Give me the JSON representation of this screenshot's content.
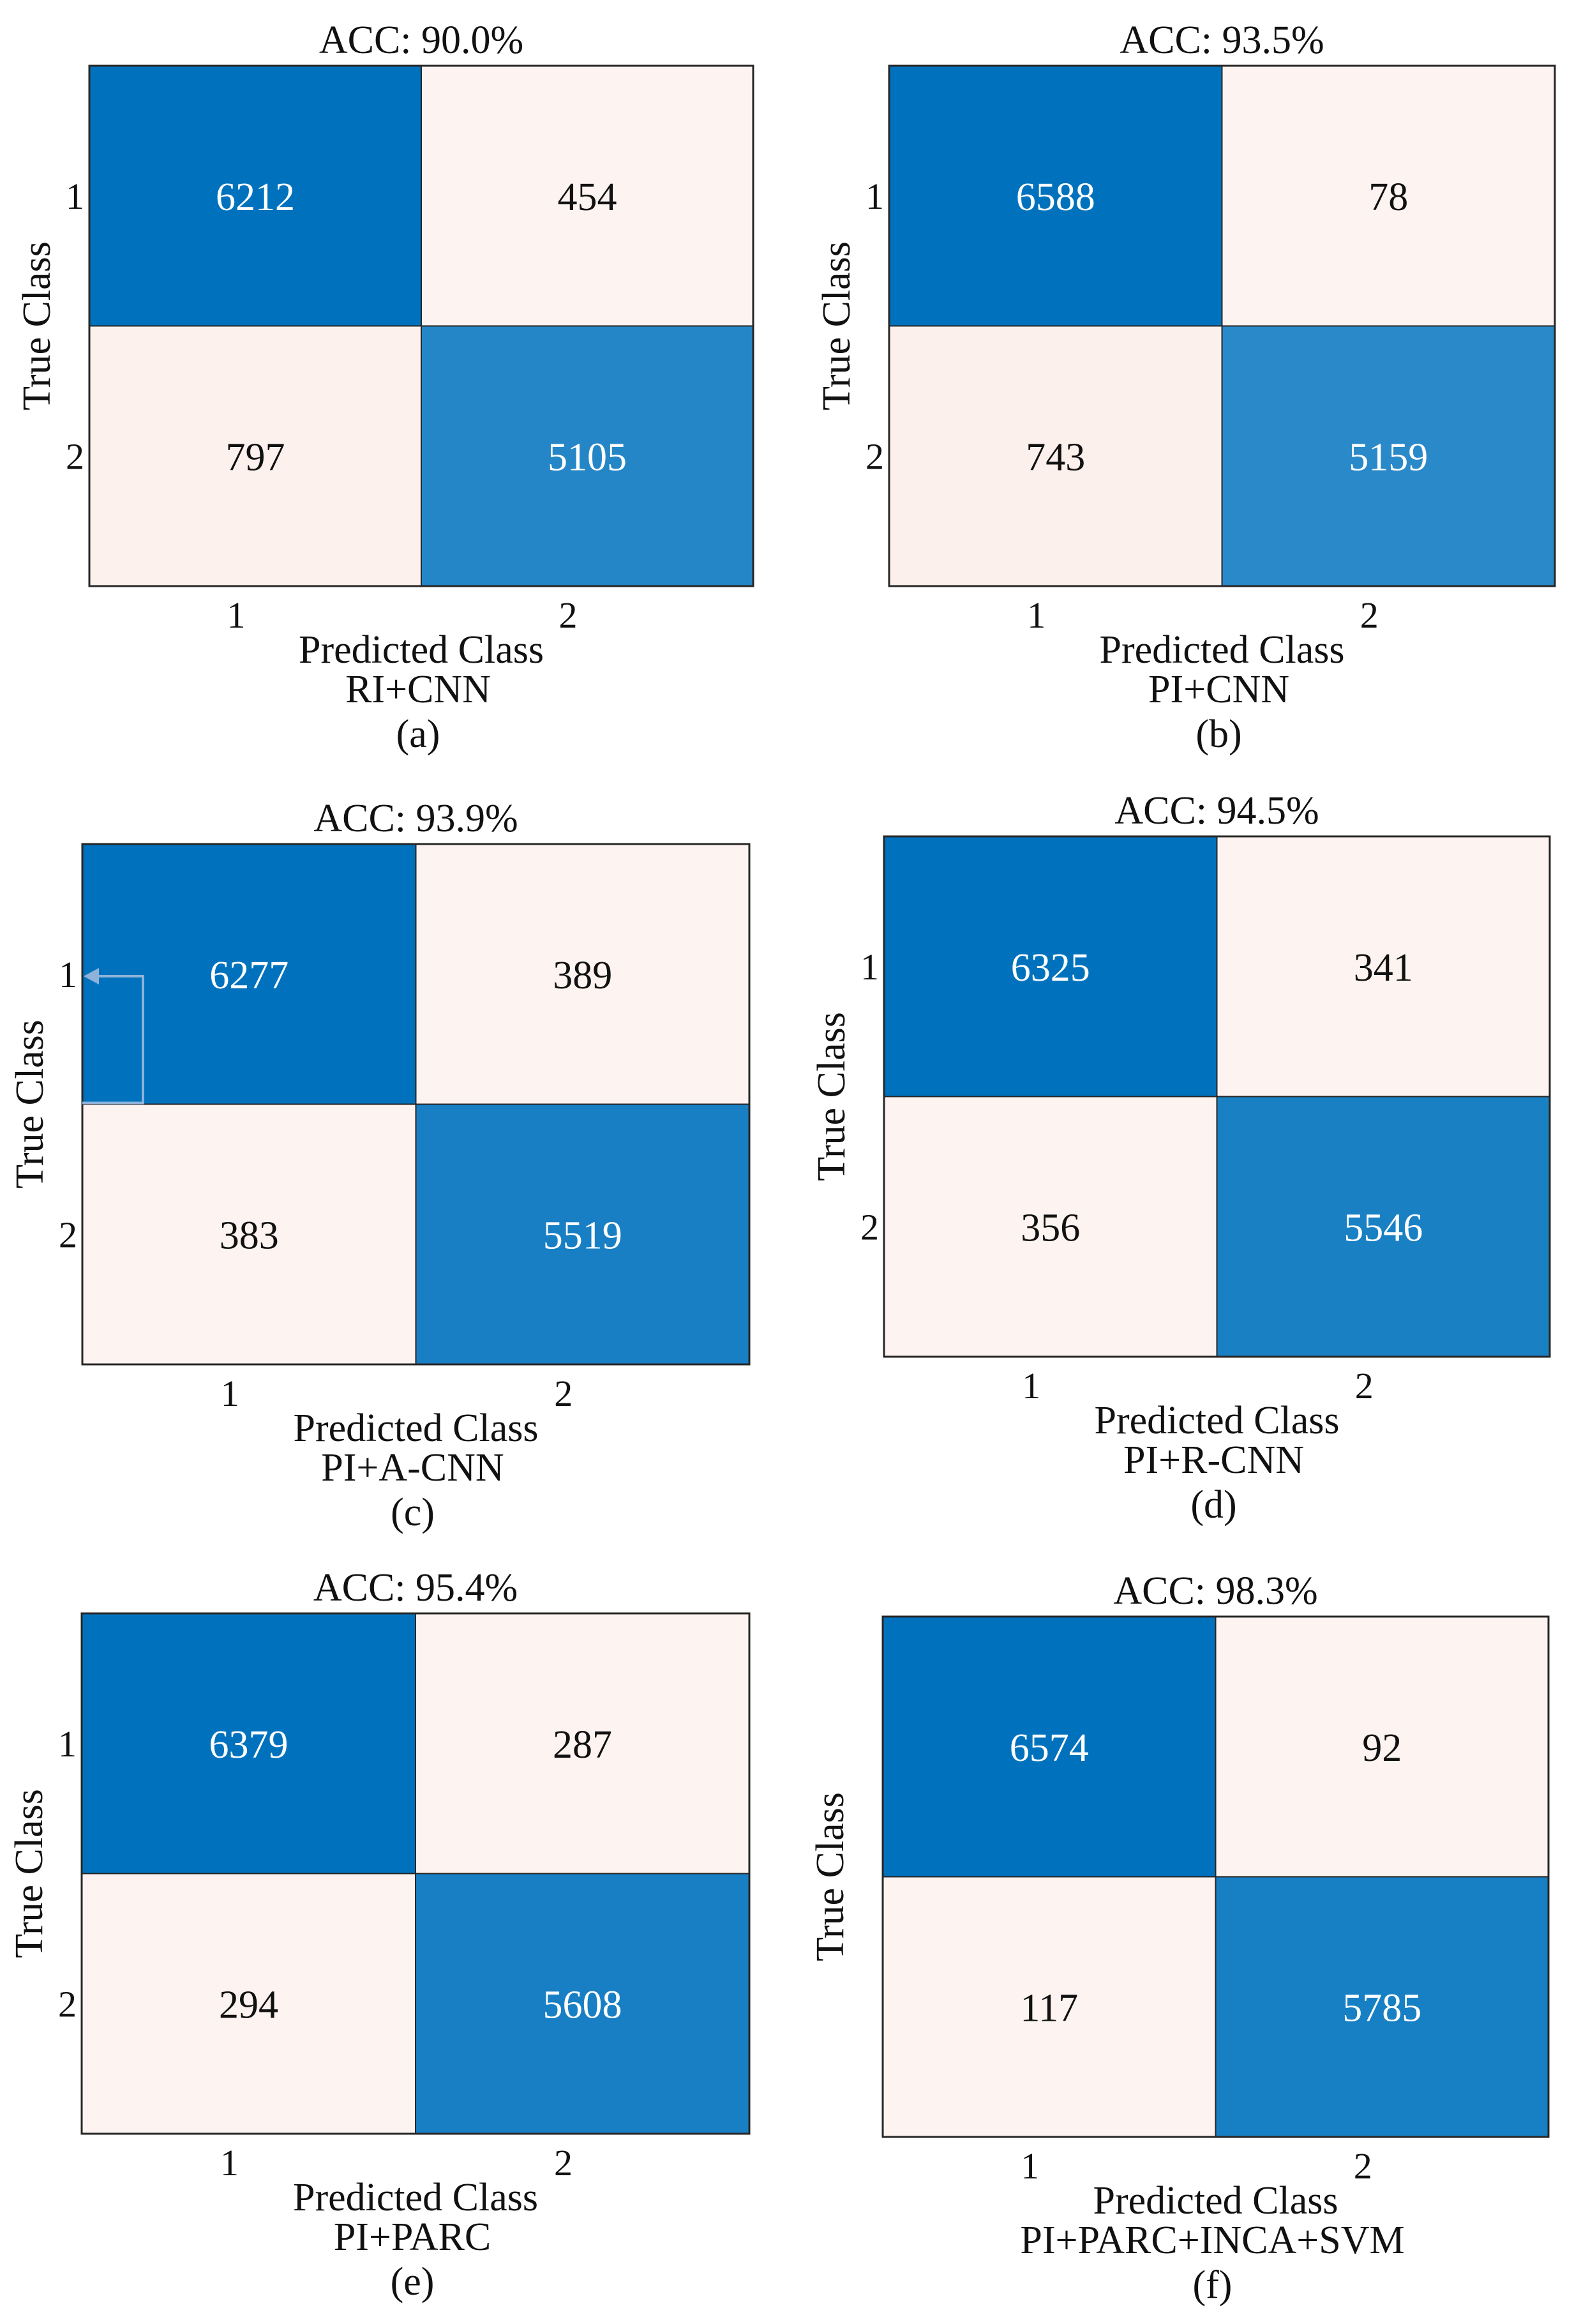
{
  "figure": {
    "colors": {
      "high": "#0072bd",
      "low": "#fdf3f0",
      "mid": "#f8e0d8",
      "border": "#262626",
      "text_dark": "#111111",
      "text_light": "#ffffff",
      "annotation": "#8fb2d9"
    }
  },
  "chart_data": [
    {
      "type": "heatmap",
      "title": "ACC: 90.0%",
      "xlabel": "Predicted Class",
      "ylabel": "True Class",
      "x_ticks": [
        "1",
        "2"
      ],
      "y_ticks": [
        "1",
        "2"
      ],
      "values": [
        [
          6212,
          454
        ],
        [
          797,
          5105
        ]
      ],
      "method": "RI+CNN",
      "panel_label": "(a)"
    },
    {
      "type": "heatmap",
      "title": "ACC: 93.5%",
      "xlabel": "Predicted Class",
      "ylabel": "True Class",
      "x_ticks": [
        "1",
        "2"
      ],
      "y_ticks": [
        "1",
        "2"
      ],
      "values": [
        [
          6588,
          78
        ],
        [
          743,
          5159
        ]
      ],
      "method": "PI+CNN",
      "panel_label": "(b)"
    },
    {
      "type": "heatmap",
      "title": "ACC: 93.9%",
      "xlabel": "Predicted Class",
      "ylabel": "True Class",
      "x_ticks": [
        "1",
        "2"
      ],
      "y_ticks": [
        "1",
        "2"
      ],
      "values": [
        [
          6277,
          389
        ],
        [
          383,
          5519
        ]
      ],
      "method": "PI+A-CNN",
      "panel_label": "(c)"
    },
    {
      "type": "heatmap",
      "title": "ACC: 94.5%",
      "xlabel": "Predicted Class",
      "ylabel": "True Class",
      "x_ticks": [
        "1",
        "2"
      ],
      "y_ticks": [
        "1",
        "2"
      ],
      "values": [
        [
          6325,
          341
        ],
        [
          356,
          5546
        ]
      ],
      "method": "PI+R-CNN",
      "panel_label": "(d)"
    },
    {
      "type": "heatmap",
      "title": "ACC: 95.4%",
      "xlabel": "Predicted Class",
      "ylabel": "True Class",
      "x_ticks": [
        "1",
        "2"
      ],
      "y_ticks": [
        "1",
        "2"
      ],
      "values": [
        [
          6379,
          287
        ],
        [
          294,
          5608
        ]
      ],
      "method": "PI+PARC",
      "panel_label": "(e)"
    },
    {
      "type": "heatmap",
      "title": "ACC: 98.3%",
      "xlabel": "Predicted Class",
      "ylabel": "True Class",
      "x_ticks": [
        "1",
        "2"
      ],
      "y_ticks": [],
      "values": [
        [
          6574,
          92
        ],
        [
          117,
          5785
        ]
      ],
      "method": "PI+PARC+INCA+SVM",
      "panel_label": "(f)"
    }
  ]
}
